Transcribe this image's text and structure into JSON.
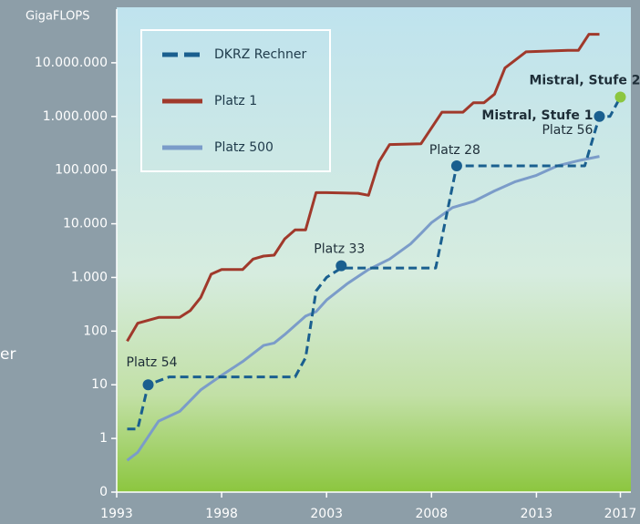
{
  "chart_data": {
    "type": "line",
    "y_label": "GigaFLOPS",
    "side_text": "er",
    "log_y": true,
    "xlim": [
      1993,
      2017.5
    ],
    "ylim": [
      0.1,
      100000000
    ],
    "xticks": [
      1993,
      1998,
      2003,
      2008,
      2013,
      2017
    ],
    "yticks": [
      {
        "value": 0.1,
        "label": "0"
      },
      1,
      10,
      100,
      {
        "value": 1000,
        "label": "1.000"
      },
      {
        "value": 10000,
        "label": "10.000"
      },
      {
        "value": 100000,
        "label": "100.000"
      },
      {
        "value": 1000000,
        "label": "1.000.000"
      },
      {
        "value": 10000000,
        "label": "10.000.000"
      }
    ],
    "series": [
      {
        "name": "DKRZ Rechner",
        "color": "#1a5f8f",
        "dashed": true,
        "x": [
          1993.5,
          1994,
          1994.5,
          1995.5,
          2001.5,
          2002,
          2002.5,
          2003,
          2003.7,
          2008.2,
          2009.2,
          2015.3,
          2016,
          2016.5,
          2017
        ],
        "values": [
          1.5,
          1.5,
          10,
          14,
          14,
          32,
          560,
          1000,
          1500,
          1500,
          120000,
          120000,
          1000000,
          1000000,
          2300000
        ]
      },
      {
        "name": "Platz 1",
        "color": "#a0392b",
        "dashed": false,
        "x": [
          1993.5,
          1994,
          1995,
          1996,
          1996.5,
          1997,
          1997.5,
          1998,
          1999,
          1999.5,
          2000,
          2000.5,
          2001,
          2001.5,
          2002,
          2002.5,
          2003,
          2004.5,
          2005,
          2005.5,
          2006,
          2007.5,
          2008.5,
          2009.5,
          2010,
          2010.5,
          2011,
          2011.5,
          2012.5,
          2014.5,
          2015,
          2015.5,
          2016
        ],
        "values": [
          65,
          140,
          180,
          180,
          240,
          420,
          1150,
          1400,
          1400,
          2200,
          2500,
          2600,
          5200,
          7700,
          7700,
          38000,
          38000,
          37000,
          34000,
          144000,
          300000,
          310000,
          1200000,
          1200000,
          1800000,
          1800000,
          2600000,
          8000000,
          16000000,
          17000000,
          17000000,
          34000000,
          34000000
        ]
      },
      {
        "name": "Platz 500",
        "color": "#7b9cc9",
        "dashed": false,
        "x": [
          1993.5,
          1994,
          1995,
          1996,
          1997,
          1998,
          1999,
          2000,
          2000.5,
          2001,
          2002,
          2002.5,
          2003,
          2004,
          2005,
          2006,
          2007,
          2007.5,
          2008,
          2009,
          2010,
          2011,
          2012,
          2013,
          2014,
          2015,
          2016
        ],
        "values": [
          0.39,
          0.55,
          2.1,
          3.2,
          8,
          15,
          27,
          54,
          60,
          86,
          190,
          230,
          380,
          770,
          1400,
          2200,
          4200,
          6600,
          10500,
          20000,
          26000,
          41000,
          61000,
          80000,
          120000,
          150000,
          180000
        ]
      }
    ],
    "annotations": [
      {
        "label": "Platz 54",
        "x": 1994.5,
        "y": 10,
        "color": "#1a5f8f"
      },
      {
        "label": "Platz 33",
        "x": 2003.7,
        "y": 1650,
        "color": "#1a5f8f"
      },
      {
        "label": "Platz 28",
        "x": 2009.2,
        "y": 120000,
        "color": "#1a5f8f"
      },
      {
        "label": "Mistral, Stufe 1",
        "sublabel": "Platz 56",
        "x": 2016,
        "y": 1000000,
        "color": "#1a5f8f"
      },
      {
        "label": "Mistral, Stufe 2",
        "x": 2017,
        "y": 2300000,
        "color": "#8cc63f"
      }
    ]
  }
}
